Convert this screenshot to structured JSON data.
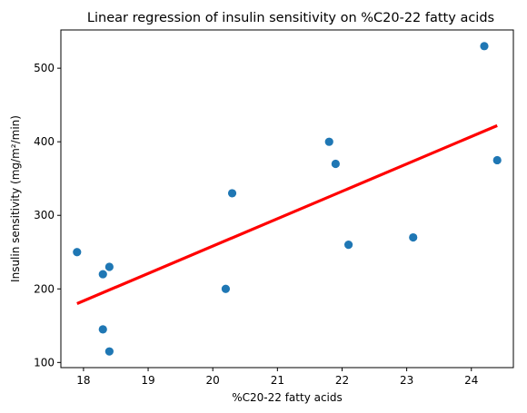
{
  "chart_data": {
    "type": "scatter",
    "title": "Linear regression of insulin sensitivity on %C20-22 fatty acids",
    "xlabel": "%C20-22 fatty acids",
    "ylabel": "Insulin sensitivity (mg/m²/min)",
    "xlim": [
      17.65,
      24.65
    ],
    "ylim": [
      93,
      552
    ],
    "xticks": [
      18,
      19,
      20,
      21,
      22,
      23,
      24
    ],
    "yticks": [
      100,
      200,
      300,
      400,
      500
    ],
    "grid": false,
    "colors": {
      "points": "#1f77b4",
      "fit": "#ff0000"
    },
    "series": [
      {
        "kind": "points",
        "points": [
          {
            "x": 17.9,
            "y": 250
          },
          {
            "x": 18.3,
            "y": 220
          },
          {
            "x": 18.3,
            "y": 145
          },
          {
            "x": 18.4,
            "y": 230
          },
          {
            "x": 18.4,
            "y": 115
          },
          {
            "x": 20.2,
            "y": 200
          },
          {
            "x": 20.3,
            "y": 330
          },
          {
            "x": 21.8,
            "y": 400
          },
          {
            "x": 21.9,
            "y": 370
          },
          {
            "x": 22.1,
            "y": 260
          },
          {
            "x": 23.1,
            "y": 270
          },
          {
            "x": 24.2,
            "y": 530
          },
          {
            "x": 24.4,
            "y": 375
          }
        ]
      },
      {
        "kind": "fit",
        "line": [
          {
            "x": 17.9,
            "y": 180
          },
          {
            "x": 24.4,
            "y": 422
          }
        ]
      }
    ]
  }
}
